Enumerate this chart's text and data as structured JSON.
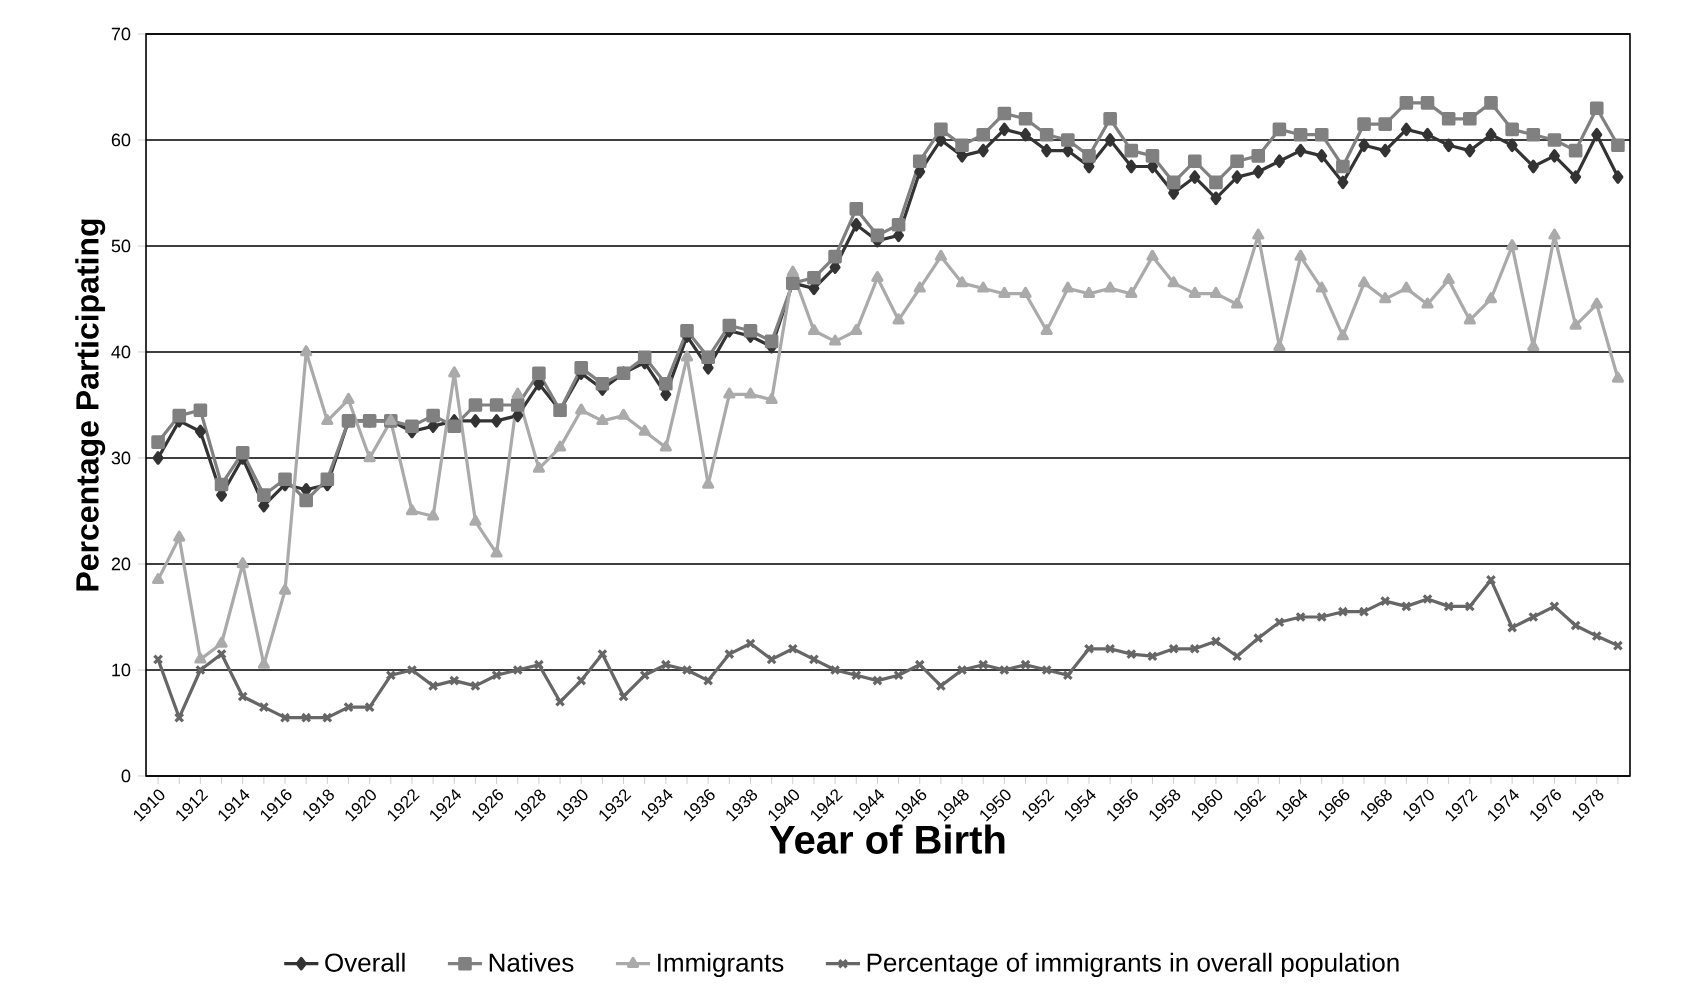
{
  "chart_data": {
    "type": "line",
    "xlabel": "Year of Birth",
    "ylabel": "Percentage Participating",
    "categories": [
      "1910",
      null,
      "1912",
      null,
      "1914",
      null,
      "1916",
      null,
      "1918",
      null,
      "1920",
      null,
      "1922",
      null,
      "1924",
      null,
      "1926",
      null,
      "1928",
      null,
      "1930",
      null,
      "1932",
      null,
      "1934",
      null,
      "1936",
      null,
      "1938",
      null,
      "1940",
      null,
      "1942",
      null,
      "1944",
      null,
      "1946",
      null,
      "1948",
      null,
      "1950",
      null,
      "1952",
      null,
      "1954",
      null,
      "1956",
      null,
      "1958",
      null,
      "1960",
      null,
      "1962",
      null,
      "1964",
      null,
      "1966",
      null,
      "1968",
      null,
      "1970",
      null,
      "1972",
      null,
      "1974",
      null,
      "1976",
      null,
      "1978",
      null
    ],
    "series": [
      {
        "name": "Overall",
        "color": "#333333",
        "marker": "diamond",
        "values": [
          30,
          33.5,
          32.5,
          26.5,
          30,
          25.5,
          27.5,
          27,
          27.5,
          33.5,
          33.5,
          33.5,
          32.5,
          33,
          33.5,
          33.5,
          33.5,
          34,
          37,
          34.5,
          38,
          36.5,
          38,
          39,
          36,
          41.5,
          38.5,
          42,
          41.5,
          40.5,
          46.5,
          46,
          48,
          52,
          50.5,
          51,
          57,
          60,
          58.5,
          59,
          61,
          60.5,
          59,
          59,
          57.5,
          60,
          57.5,
          57.5,
          55,
          56.5,
          54.5,
          56.5,
          57,
          58,
          59,
          58.5,
          56,
          59.5,
          59,
          61,
          60.5,
          59.5,
          59,
          60.5,
          59.5,
          57.5,
          58.5,
          56.5,
          60.5,
          56.5
        ]
      },
      {
        "name": "Natives",
        "color": "#808080",
        "marker": "square",
        "values": [
          31.5,
          34,
          34.5,
          27.5,
          30.5,
          26.5,
          28,
          26,
          28,
          33.5,
          33.5,
          33.5,
          33,
          34,
          33,
          35,
          35,
          35,
          38,
          34.5,
          38.5,
          37,
          38,
          39.5,
          37,
          42,
          39.5,
          42.5,
          42,
          41,
          46.5,
          47,
          49,
          53.5,
          51,
          52,
          58,
          61,
          59.5,
          60.5,
          62.5,
          62,
          60.5,
          60,
          58.5,
          62,
          59,
          58.5,
          56,
          58,
          56,
          58,
          58.5,
          61,
          60.5,
          60.5,
          57.5,
          61.5,
          61.5,
          63.5,
          63.5,
          62,
          62,
          63.5,
          61,
          60.5,
          60,
          59,
          63,
          59.5
        ]
      },
      {
        "name": "Immigrants",
        "color": "#aaaaaa",
        "marker": "triangle",
        "values": [
          18.5,
          22.5,
          11,
          12.5,
          20,
          10.5,
          17.5,
          40,
          33.5,
          35.5,
          30,
          33.5,
          25,
          24.5,
          38,
          24,
          21,
          36,
          29,
          31,
          34.5,
          33.5,
          34,
          32.5,
          31,
          39.5,
          27.5,
          36,
          36,
          35.5,
          47.5,
          42,
          41,
          42,
          47,
          43,
          46,
          49,
          46.5,
          46,
          45.5,
          45.5,
          42,
          46,
          45.5,
          46,
          45.5,
          49,
          46.5,
          45.5,
          45.5,
          44.5,
          51,
          40.5,
          49,
          46,
          41.5,
          46.5,
          45,
          46,
          44.5,
          46.8,
          43,
          45,
          50,
          40.5,
          51,
          42.5,
          44.5,
          37.5
        ]
      },
      {
        "name": "Percentage of immigrants in overall population",
        "color": "#666666",
        "marker": "cross",
        "values": [
          11,
          5.5,
          10,
          11.5,
          7.5,
          6.5,
          5.5,
          5.5,
          5.5,
          6.5,
          6.5,
          9.5,
          10,
          8.5,
          9,
          8.5,
          9.5,
          10,
          10.5,
          7,
          9,
          11.5,
          7.5,
          9.5,
          10.5,
          10,
          9,
          11.5,
          12.5,
          11,
          12,
          11,
          10,
          9.5,
          9,
          9.5,
          10.5,
          8.5,
          10,
          10.5,
          10,
          10.5,
          10,
          9.5,
          12,
          12,
          11.5,
          11.3,
          12,
          12,
          12.7,
          11.3,
          13,
          14.5,
          15,
          15,
          15.5,
          15.5,
          16.5,
          16,
          16.7,
          16,
          16,
          18.5,
          14,
          15,
          16,
          14.2,
          13.2,
          12.3
        ]
      }
    ],
    "ylim": [
      0,
      70
    ],
    "yticks": [
      0,
      10,
      20,
      30,
      40,
      50,
      60,
      70
    ],
    "grid": "y",
    "legend": "bottom",
    "line_style": "solid"
  }
}
